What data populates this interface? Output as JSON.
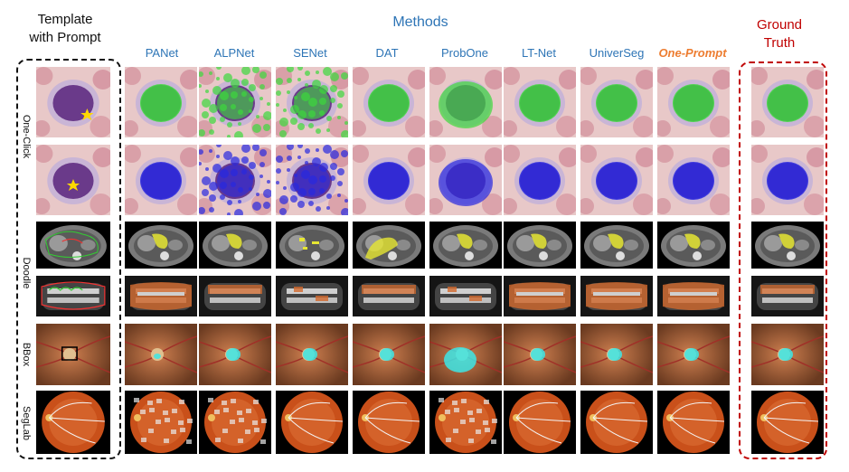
{
  "header": {
    "template_title": "Template\nwith Prompt",
    "methods_title": "Methods",
    "ground_truth_title": "Ground\nTruth"
  },
  "methods": [
    "PANet",
    "ALPNet",
    "SENet",
    "DAT",
    "ProbOne",
    "LT-Net",
    "UniverSeg",
    "One-Prompt"
  ],
  "highlighted_method": "One-Prompt",
  "row_labels": {
    "one_click": "One-Click",
    "doodle": "Doodle",
    "bbox": "BBox",
    "seglab": "SegLab"
  },
  "colors": {
    "methods": "#2E75B6",
    "highlight": "#ED7D31",
    "ground_truth": "#C00000",
    "mask_green": "#3CD83C",
    "mask_blue": "#2828E0",
    "mask_yellow": "#E6E632",
    "mask_orange": "#D2692D",
    "mask_cyan": "#3CE6E6"
  }
}
